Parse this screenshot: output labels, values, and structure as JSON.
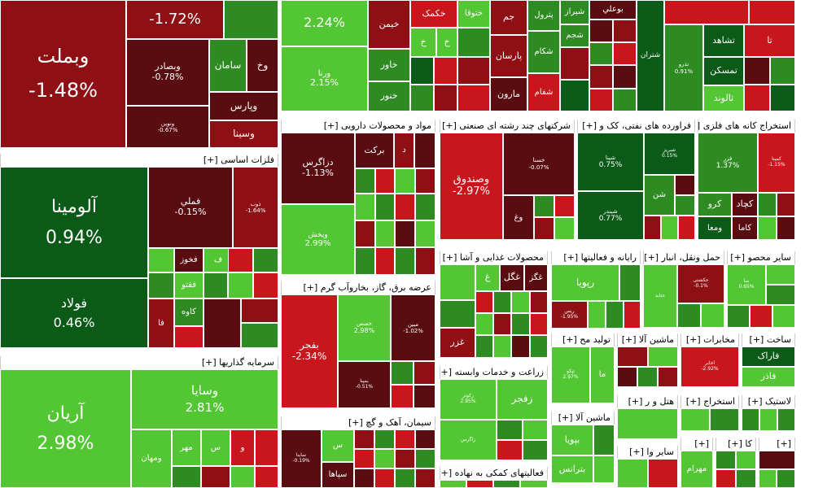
{
  "colors": {
    "dark_green": "#0b5a18",
    "green": "#2e8b22",
    "light_green": "#53c633",
    "dark_red": "#5a0d10",
    "red": "#8e1014",
    "bright_red": "#c8161c"
  },
  "sectors": [
    {
      "label": "فلزات اساسی [+]"
    },
    {
      "label": "سرمایه گذاریها [+]"
    },
    {
      "label": "مواد و محصولات دارویی [+]"
    },
    {
      "label": "عرضه برق، گاز، بخاروآب گرم [+]"
    },
    {
      "label": "سیمان، آهک و گچ [+]"
    },
    {
      "label": "شرکتهای چند رشته ای صنعتی [+]"
    },
    {
      "label": "فراورده های نفتی، کک و [+]"
    },
    {
      "label": "استخراج کانه های فلزی [+]"
    },
    {
      "label": "محصولات غذایی و آشا [+]"
    },
    {
      "label": "رایانه و فعالیتها [+]"
    },
    {
      "label": "حمل ونقل، انبار [+]"
    },
    {
      "label": "سایر محصو [+]"
    },
    {
      "label": "زراعت و خدمات وابسته [+]"
    },
    {
      "label": "تولید مح [+]"
    },
    {
      "label": "ماشین آلا [+]"
    },
    {
      "label": "مخابرات [+]"
    },
    {
      "label": "ساخت [+]"
    },
    {
      "label": "ماشین آلا [+]"
    },
    {
      "label": "هتل و ر [+]"
    },
    {
      "label": "استخراج [+]"
    },
    {
      "label": "لاستیک [+]"
    },
    {
      "label": "فعالیتهای کمکی به نهاده [+]"
    },
    {
      "label": "سایر وا [+]"
    },
    {
      "label": "[+]"
    },
    {
      "label": "کا [+]"
    },
    {
      "label": "[+]"
    }
  ],
  "tiles": [
    {
      "name": "وبملت",
      "pct": "-1.48%",
      "color": "dark_red"
    },
    {
      "name": "",
      "pct": "-1.72%",
      "color": "dark_red"
    },
    {
      "name": "",
      "pct": "",
      "color": "green"
    },
    {
      "name": "وبصادر",
      "pct": "-0.78%",
      "color": "dark_red"
    },
    {
      "name": "سامان",
      "pct": "",
      "color": "green"
    },
    {
      "name": "وخ",
      "pct": "",
      "color": "dark_red"
    },
    {
      "name": "ونوین",
      "pct": "-0.67%",
      "color": "dark_red"
    },
    {
      "name": "وپارس",
      "pct": "",
      "color": "dark_red"
    },
    {
      "name": "وسینا",
      "pct": "",
      "color": "red"
    },
    {
      "name": "",
      "pct": "2.24%",
      "color": "light_green"
    },
    {
      "name": "ورنا",
      "pct": "2.15%",
      "color": "light_green"
    },
    {
      "name": "خیمن",
      "pct": "",
      "color": "red"
    },
    {
      "name": "خاور",
      "pct": "",
      "color": "green"
    },
    {
      "name": "خنور",
      "pct": "",
      "color": "green"
    },
    {
      "name": "خکمک",
      "pct": "",
      "color": "bright_red"
    },
    {
      "name": "خ",
      "pct": "",
      "color": "light_green"
    },
    {
      "name": "خ",
      "pct": "",
      "color": "light_green"
    },
    {
      "name": "ختوقا",
      "pct": "",
      "color": "light_green"
    },
    {
      "name": "جم",
      "pct": "",
      "color": "red"
    },
    {
      "name": "پارسان",
      "pct": "",
      "color": "red"
    },
    {
      "name": "مارون",
      "pct": "",
      "color": "dark_red"
    },
    {
      "name": "پترول",
      "pct": "",
      "color": "green"
    },
    {
      "name": "شکام",
      "pct": "",
      "color": "green"
    },
    {
      "name": "شفام",
      "pct": "",
      "color": "bright_red"
    },
    {
      "name": "شیراز",
      "pct": "",
      "color": "green"
    },
    {
      "name": "شجم",
      "pct": "",
      "color": "green"
    },
    {
      "name": "بوعلي",
      "pct": "",
      "color": "dark_red"
    },
    {
      "name": "شتران",
      "pct": "",
      "color": "green"
    },
    {
      "name": "تذرو",
      "pct": "0.91%",
      "color": "green"
    },
    {
      "name": "تشاهد",
      "pct": "",
      "color": "dark_green"
    },
    {
      "name": "تا",
      "pct": "",
      "color": "bright_red"
    },
    {
      "name": "تمسکن",
      "pct": "",
      "color": "dark_green"
    },
    {
      "name": "ثالوند",
      "pct": "",
      "color": "light_green"
    },
    {
      "name": "آلومينا",
      "pct": "0.94%",
      "color": "dark_green"
    },
    {
      "name": "فولاد",
      "pct": "0.46%",
      "color": "dark_green"
    },
    {
      "name": "فملي",
      "pct": "-0.15%",
      "color": "dark_red"
    },
    {
      "name": "ذوب",
      "pct": "-1.64%",
      "color": "red"
    },
    {
      "name": "فخوز",
      "pct": "",
      "color": "dark_red"
    },
    {
      "name": "ف",
      "pct": "",
      "color": "light_green"
    },
    {
      "name": "فقتو",
      "pct": "",
      "color": "light_green"
    },
    {
      "name": "فا",
      "pct": "",
      "color": "red"
    },
    {
      "name": "کاوه",
      "pct": "",
      "color": "green"
    },
    {
      "name": "آريان",
      "pct": "2.98%",
      "color": "light_green"
    },
    {
      "name": "وسايا",
      "pct": "2.81%",
      "color": "light_green"
    },
    {
      "name": "ومهان",
      "pct": "",
      "color": "light_green"
    },
    {
      "name": "مهر",
      "pct": "",
      "color": "light_green"
    },
    {
      "name": "س",
      "pct": "",
      "color": "light_green"
    },
    {
      "name": "و",
      "pct": "",
      "color": "bright_red"
    },
    {
      "name": "دزاگرس",
      "pct": "-1.13%",
      "color": "dark_red"
    },
    {
      "name": "برکت",
      "pct": "",
      "color": "dark_red"
    },
    {
      "name": "د",
      "pct": "",
      "color": "red"
    },
    {
      "name": "ویخش",
      "pct": "2.99%",
      "color": "light_green"
    },
    {
      "name": "بفجر",
      "pct": "-2.34%",
      "color": "bright_red"
    },
    {
      "name": "خصص",
      "pct": "2.98%",
      "color": "light_green"
    },
    {
      "name": "مبین",
      "pct": "-1.02%",
      "color": "dark_red"
    },
    {
      "name": "بمپنا",
      "pct": "-0.51%",
      "color": "dark_red"
    },
    {
      "name": "سپاها",
      "pct": "",
      "color": "dark_red"
    },
    {
      "name": "س",
      "pct": "",
      "color": "light_green"
    },
    {
      "name": "ساینا",
      "pct": "-0.19%",
      "color": "dark_red"
    },
    {
      "name": "وصندوق",
      "pct": "-2.97%",
      "color": "bright_red"
    },
    {
      "name": "خسنا",
      "pct": "-0.07%",
      "color": "dark_red"
    },
    {
      "name": "وغ",
      "pct": "",
      "color": "dark_red"
    },
    {
      "name": "شپنا",
      "pct": "0.75%",
      "color": "dark_green"
    },
    {
      "name": "شبندر",
      "pct": "0.77%",
      "color": "dark_green"
    },
    {
      "name": "شبريز",
      "pct": "0.15%",
      "color": "dark_green"
    },
    {
      "name": "شن",
      "pct": "",
      "color": "green"
    },
    {
      "name": "فزر",
      "pct": "1.37%",
      "color": "green"
    },
    {
      "name": "کرو",
      "pct": "",
      "color": "green"
    },
    {
      "name": "کچاد",
      "pct": "",
      "color": "dark_red"
    },
    {
      "name": "ومعا",
      "pct": "",
      "color": "dark_green"
    },
    {
      "name": "کاما",
      "pct": "",
      "color": "dark_red"
    },
    {
      "name": "کمینا",
      "pct": "-1.15%",
      "color": "bright_red"
    },
    {
      "name": "غگز",
      "pct": "",
      "color": "dark_red"
    },
    {
      "name": "غگل",
      "pct": "",
      "color": "dark_red"
    },
    {
      "name": "غ",
      "pct": "",
      "color": "light_green"
    },
    {
      "name": "غزر",
      "pct": "",
      "color": "red"
    },
    {
      "name": "رپويا",
      "pct": "",
      "color": "light_green"
    },
    {
      "name": "ریس",
      "pct": "-1.95%",
      "color": "red"
    },
    {
      "name": "حتاید",
      "pct": "",
      "color": "light_green"
    },
    {
      "name": "حکشتی",
      "pct": "-0.1%",
      "color": "red"
    },
    {
      "name": "سا",
      "pct": "0.65%",
      "color": "light_green"
    },
    {
      "name": "زفجر",
      "pct": "",
      "color": "light_green"
    },
    {
      "name": "زکوثر",
      "pct": "2.95%",
      "color": "light_green"
    },
    {
      "name": "زاگرس",
      "pct": "",
      "color": "light_green"
    },
    {
      "name": "تپکو",
      "pct": "2.97%",
      "color": "light_green"
    },
    {
      "name": "ما",
      "pct": "",
      "color": "red"
    },
    {
      "name": "اخابر",
      "pct": "-2.92%",
      "color": "bright_red"
    },
    {
      "name": "فاراک",
      "pct": "",
      "color": "dark_green"
    },
    {
      "name": "فاذر",
      "pct": "",
      "color": "light_green"
    },
    {
      "name": "بپویا",
      "pct": "",
      "color": "light_green"
    },
    {
      "name": "بترانس",
      "pct": "",
      "color": "light_green"
    },
    {
      "name": "مهرام",
      "pct": "",
      "color": "light_green"
    }
  ]
}
